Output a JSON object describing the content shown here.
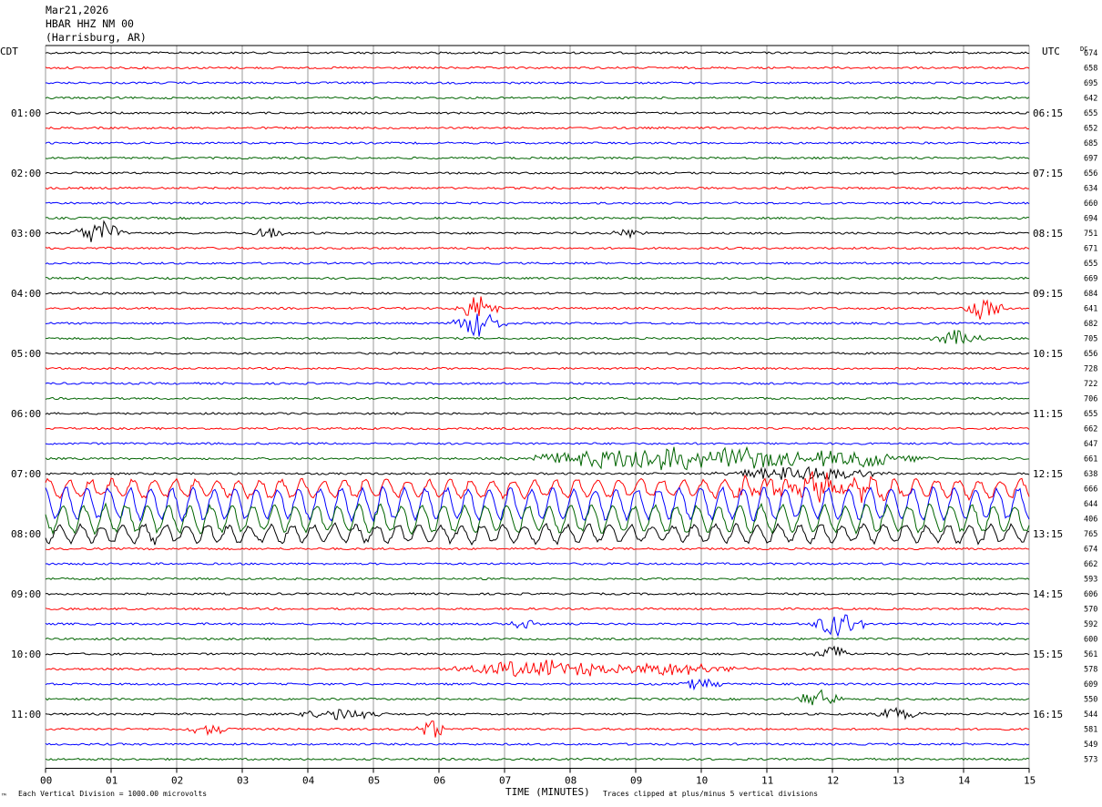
{
  "header": {
    "date": "Mar21,2026",
    "station": "HBAR HHZ NM 00",
    "location": "(Harrisburg, AR)"
  },
  "left_tz": "CDT",
  "right_tz": "UTC",
  "dc_label": "DC",
  "footer": {
    "scale": "Each Vertical Division = 1000.00 microvolts",
    "xlabel": "TIME (MINUTES)",
    "clip": "Traces clipped at plus/minus 5 vertical divisions",
    "mark": "™"
  },
  "colors": {
    "trace_cycle": [
      "#000000",
      "#ff0000",
      "#0000ff",
      "#006400"
    ],
    "grid": "#999999"
  },
  "chart_data": {
    "type": "line",
    "title": "HBAR HHZ NM 00",
    "xlabel": "TIME (MINUTES)",
    "x_ticks": [
      "00",
      "01",
      "02",
      "03",
      "04",
      "05",
      "06",
      "07",
      "08",
      "09",
      "10",
      "11",
      "12",
      "13",
      "14",
      "15"
    ],
    "xlim": [
      0,
      15
    ],
    "traces_per_hour": 4,
    "trace_count": 48,
    "left_hour_labels": [
      "01:00",
      "02:00",
      "03:00",
      "04:00",
      "05:00",
      "06:00",
      "07:00",
      "08:00",
      "09:00",
      "10:00",
      "11:00"
    ],
    "right_hour_labels": [
      "06:15",
      "07:15",
      "08:15",
      "09:15",
      "10:15",
      "11:15",
      "12:15",
      "13:15",
      "14:15",
      "15:15",
      "16:15"
    ],
    "dc_offsets": [
      674,
      658,
      695,
      642,
      655,
      652,
      685,
      697,
      656,
      634,
      660,
      694,
      751,
      671,
      655,
      669,
      684,
      641,
      682,
      705,
      656,
      728,
      722,
      706,
      655,
      662,
      647,
      661,
      638,
      666,
      644,
      406,
      765,
      674,
      662,
      593,
      606,
      570,
      592,
      600,
      561,
      578,
      609,
      550,
      544,
      581,
      549,
      573
    ],
    "events": [
      {
        "trace": 12,
        "minute": 0.8,
        "amp": 1.4,
        "dur": 0.45
      },
      {
        "trace": 12,
        "minute": 3.4,
        "amp": 0.6,
        "dur": 0.3
      },
      {
        "trace": 12,
        "minute": 8.9,
        "amp": 0.5,
        "dur": 0.3
      },
      {
        "trace": 17,
        "minute": 6.6,
        "amp": 1.3,
        "dur": 0.4
      },
      {
        "trace": 17,
        "minute": 14.3,
        "amp": 1.2,
        "dur": 0.4
      },
      {
        "trace": 18,
        "minute": 6.6,
        "amp": 1.3,
        "dur": 0.5
      },
      {
        "trace": 19,
        "minute": 13.9,
        "amp": 0.8,
        "dur": 0.5
      },
      {
        "trace": 27,
        "minute": 9.3,
        "amp": 1.2,
        "dur": 2.5
      },
      {
        "trace": 27,
        "minute": 10.8,
        "amp": 1.0,
        "dur": 1.5
      },
      {
        "trace": 27,
        "minute": 12.4,
        "amp": 0.9,
        "dur": 1.2
      },
      {
        "trace": 28,
        "minute": 11.5,
        "amp": 0.8,
        "dur": 1.5
      },
      {
        "trace": 29,
        "minute": 11.8,
        "amp": 1.2,
        "dur": 1.8
      },
      {
        "trace": 38,
        "minute": 12.1,
        "amp": 1.4,
        "dur": 0.5
      },
      {
        "trace": 38,
        "minute": 7.3,
        "amp": 0.5,
        "dur": 0.3
      },
      {
        "trace": 40,
        "minute": 12.0,
        "amp": 0.8,
        "dur": 0.4
      },
      {
        "trace": 41,
        "minute": 7.5,
        "amp": 0.9,
        "dur": 1.6
      },
      {
        "trace": 41,
        "minute": 9.5,
        "amp": 0.6,
        "dur": 1.5
      },
      {
        "trace": 42,
        "minute": 10.0,
        "amp": 0.7,
        "dur": 0.4
      },
      {
        "trace": 43,
        "minute": 11.8,
        "amp": 1.0,
        "dur": 0.4
      },
      {
        "trace": 44,
        "minute": 4.5,
        "amp": 0.6,
        "dur": 0.8
      },
      {
        "trace": 44,
        "minute": 13.0,
        "amp": 0.6,
        "dur": 0.5
      },
      {
        "trace": 45,
        "minute": 5.9,
        "amp": 0.9,
        "dur": 0.3
      },
      {
        "trace": 45,
        "minute": 2.5,
        "amp": 0.5,
        "dur": 0.5
      }
    ],
    "wave_traces": [
      29,
      30,
      31,
      32
    ]
  }
}
